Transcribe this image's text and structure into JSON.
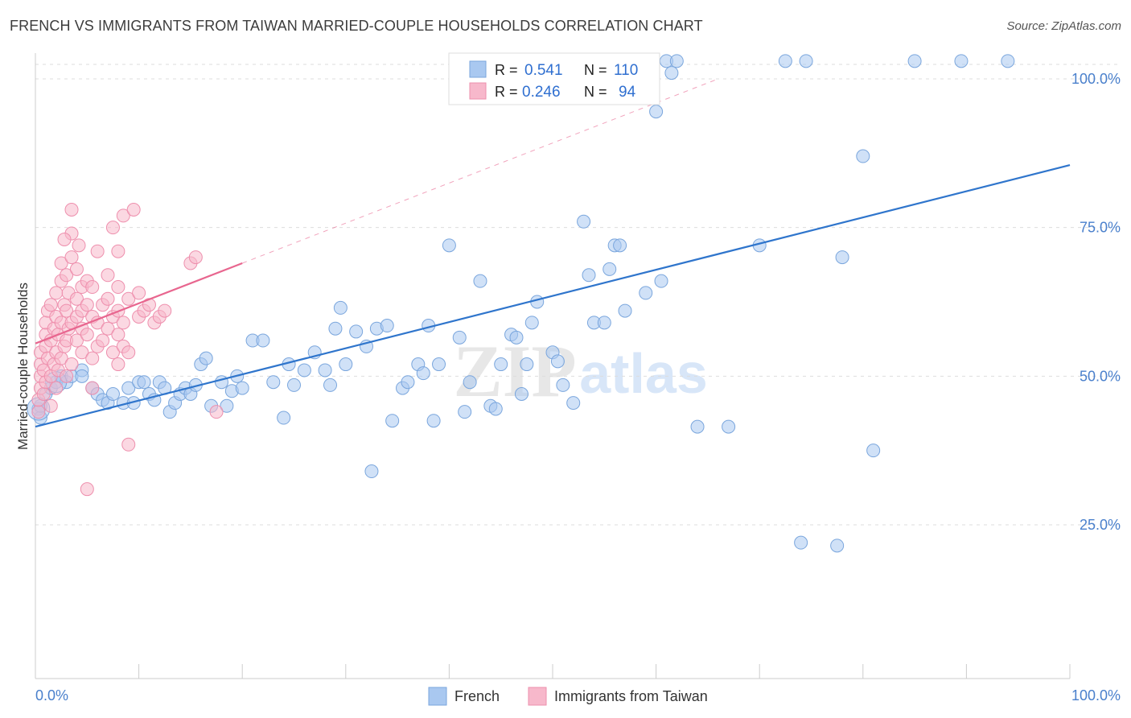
{
  "title": "FRENCH VS IMMIGRANTS FROM TAIWAN MARRIED-COUPLE HOUSEHOLDS CORRELATION CHART",
  "source": "Source: ZipAtlas.com",
  "watermark": {
    "zip": "ZIP",
    "atlas": "atlas"
  },
  "colors": {
    "french_fill": "#a9c8f0",
    "french_stroke": "#7aa6dd",
    "french_line": "#2f75cc",
    "taiwan_fill": "#f7b8cb",
    "taiwan_stroke": "#ee8fad",
    "taiwan_line": "#e8668f",
    "tick_text": "#4a80cc",
    "grid": "#dddddd"
  },
  "legend_box": {
    "rows": [
      {
        "r_label": "R =",
        "r_value": "0.541",
        "n_label": "N =",
        "n_value": "110"
      },
      {
        "r_label": "R =",
        "r_value": "0.246",
        "n_label": "N =",
        "n_value": "94"
      }
    ]
  },
  "chart_data": {
    "type": "scatter",
    "title": "FRENCH VS IMMIGRANTS FROM TAIWAN MARRIED-COUPLE HOUSEHOLDS CORRELATION CHART",
    "xlabel": "",
    "ylabel": "Married-couple Households",
    "xlim": [
      0,
      100
    ],
    "ylim": [
      0,
      105
    ],
    "x_tick_labels": [
      "0.0%",
      "100.0%"
    ],
    "y_ticks": [
      25,
      50,
      75,
      100
    ],
    "y_tick_labels": [
      "25.0%",
      "50.0%",
      "75.0%",
      "100.0%"
    ],
    "grid": true,
    "legend": [
      "French",
      "Immigrants from Taiwan"
    ],
    "series": [
      {
        "name": "French",
        "r": 0.541,
        "n": 110,
        "trend": {
          "x": [
            0,
            100
          ],
          "y": [
            41.5,
            85.5
          ],
          "dashed_extension": false
        },
        "points": [
          [
            0.3,
            44.5
          ],
          [
            0.5,
            43
          ],
          [
            0.5,
            45
          ],
          [
            1,
            47
          ],
          [
            1.5,
            48
          ],
          [
            2,
            49
          ],
          [
            2.5,
            50
          ],
          [
            3,
            49
          ],
          [
            3.5,
            50
          ],
          [
            4.5,
            51
          ],
          [
            4.5,
            50
          ],
          [
            5.5,
            48
          ],
          [
            6,
            47
          ],
          [
            6.5,
            46
          ],
          [
            7,
            45.5
          ],
          [
            7.5,
            47
          ],
          [
            8.5,
            45.5
          ],
          [
            9,
            48
          ],
          [
            9.5,
            45.5
          ],
          [
            10,
            49
          ],
          [
            10.5,
            49
          ],
          [
            11,
            47
          ],
          [
            11.5,
            46
          ],
          [
            12,
            49
          ],
          [
            12.5,
            48
          ],
          [
            13,
            44
          ],
          [
            13.5,
            45.5
          ],
          [
            14,
            47
          ],
          [
            14.5,
            48
          ],
          [
            15,
            47
          ],
          [
            15.5,
            48.5
          ],
          [
            16,
            52
          ],
          [
            16.5,
            53
          ],
          [
            17,
            45
          ],
          [
            18,
            49
          ],
          [
            18.5,
            45
          ],
          [
            19,
            47.5
          ],
          [
            19.5,
            50
          ],
          [
            20,
            48
          ],
          [
            21,
            56
          ],
          [
            22,
            56
          ],
          [
            23,
            49
          ],
          [
            24,
            43
          ],
          [
            24.5,
            52
          ],
          [
            25,
            48.5
          ],
          [
            26,
            51
          ],
          [
            27,
            54
          ],
          [
            28,
            51
          ],
          [
            28.5,
            48.5
          ],
          [
            29,
            58
          ],
          [
            29.5,
            61.5
          ],
          [
            30,
            52
          ],
          [
            31,
            57.5
          ],
          [
            32,
            55
          ],
          [
            33,
            58
          ],
          [
            34,
            58.5
          ],
          [
            34.5,
            42.5
          ],
          [
            35.5,
            48
          ],
          [
            36,
            49
          ],
          [
            37,
            52
          ],
          [
            37.5,
            50.5
          ],
          [
            38,
            58.5
          ],
          [
            38.5,
            42.5
          ],
          [
            39,
            52
          ],
          [
            40,
            72
          ],
          [
            41,
            56.5
          ],
          [
            41.5,
            44
          ],
          [
            42,
            49
          ],
          [
            43,
            66
          ],
          [
            44,
            45
          ],
          [
            44.5,
            44.5
          ],
          [
            45,
            52
          ],
          [
            46,
            57
          ],
          [
            46.5,
            56.5
          ],
          [
            47,
            47
          ],
          [
            47.5,
            52
          ],
          [
            48,
            59
          ],
          [
            48.5,
            62.5
          ],
          [
            50,
            54
          ],
          [
            50.5,
            52.5
          ],
          [
            51,
            48.5
          ],
          [
            52,
            45.5
          ],
          [
            53,
            76
          ],
          [
            53.5,
            67
          ],
          [
            54,
            59
          ],
          [
            55,
            59
          ],
          [
            55.5,
            68
          ],
          [
            56,
            72
          ],
          [
            56.5,
            72
          ],
          [
            57,
            61
          ],
          [
            59,
            64
          ],
          [
            60,
            94.5
          ],
          [
            60.5,
            66
          ],
          [
            61,
            103
          ],
          [
            61.5,
            101
          ],
          [
            62,
            103
          ],
          [
            64,
            41.5
          ],
          [
            67,
            41.5
          ],
          [
            70,
            72
          ],
          [
            72.5,
            103
          ],
          [
            74,
            22
          ],
          [
            74.5,
            103
          ],
          [
            77.5,
            21.5
          ],
          [
            78,
            70
          ],
          [
            80,
            87
          ],
          [
            81,
            37.5
          ],
          [
            85,
            103
          ],
          [
            89.5,
            103
          ],
          [
            94,
            103
          ],
          [
            32.5,
            34
          ]
        ]
      },
      {
        "name": "Immigrants from Taiwan",
        "r": 0.246,
        "n": 94,
        "trend": {
          "x": [
            0,
            20
          ],
          "y": [
            55.5,
            69
          ],
          "dashed_extension": true,
          "dashed_to": {
            "x": 66,
            "y": 100
          }
        },
        "points": [
          [
            0.3,
            44
          ],
          [
            0.3,
            46
          ],
          [
            0.5,
            48
          ],
          [
            0.5,
            50
          ],
          [
            0.5,
            52
          ],
          [
            0.5,
            54
          ],
          [
            0.8,
            47
          ],
          [
            0.8,
            51
          ],
          [
            1,
            49
          ],
          [
            1,
            55
          ],
          [
            1,
            57
          ],
          [
            1,
            59
          ],
          [
            1.2,
            53
          ],
          [
            1.2,
            61
          ],
          [
            1.5,
            45
          ],
          [
            1.5,
            50
          ],
          [
            1.5,
            56
          ],
          [
            1.5,
            62
          ],
          [
            1.8,
            52
          ],
          [
            1.8,
            58
          ],
          [
            2,
            48
          ],
          [
            2,
            54
          ],
          [
            2,
            60
          ],
          [
            2,
            64
          ],
          [
            2.2,
            51
          ],
          [
            2.2,
            57
          ],
          [
            2.5,
            53
          ],
          [
            2.5,
            59
          ],
          [
            2.5,
            66
          ],
          [
            2.5,
            69
          ],
          [
            2.8,
            55
          ],
          [
            2.8,
            62
          ],
          [
            3,
            50
          ],
          [
            3,
            56
          ],
          [
            3,
            61
          ],
          [
            3,
            67
          ],
          [
            3.2,
            58
          ],
          [
            3.2,
            64
          ],
          [
            3.5,
            52
          ],
          [
            3.5,
            59
          ],
          [
            3.5,
            70
          ],
          [
            3.5,
            74
          ],
          [
            4,
            56
          ],
          [
            4,
            60
          ],
          [
            4,
            63
          ],
          [
            4,
            68
          ],
          [
            4.2,
            72
          ],
          [
            4.5,
            54
          ],
          [
            4.5,
            58
          ],
          [
            4.5,
            61
          ],
          [
            4.5,
            65
          ],
          [
            5,
            57
          ],
          [
            5,
            62
          ],
          [
            5,
            66
          ],
          [
            5.5,
            48
          ],
          [
            5.5,
            53
          ],
          [
            5.5,
            60
          ],
          [
            5.5,
            65
          ],
          [
            6,
            55
          ],
          [
            6,
            59
          ],
          [
            6,
            71
          ],
          [
            6.5,
            56
          ],
          [
            6.5,
            62
          ],
          [
            7,
            58
          ],
          [
            7,
            63
          ],
          [
            7,
            67
          ],
          [
            7.5,
            54
          ],
          [
            7.5,
            60
          ],
          [
            7.5,
            75
          ],
          [
            8,
            52
          ],
          [
            8,
            57
          ],
          [
            8,
            61
          ],
          [
            8,
            65
          ],
          [
            8,
            71
          ],
          [
            8.5,
            55
          ],
          [
            8.5,
            59
          ],
          [
            8.5,
            77
          ],
          [
            9,
            54
          ],
          [
            9,
            63
          ],
          [
            9.5,
            78
          ],
          [
            10,
            60
          ],
          [
            10,
            64
          ],
          [
            10.5,
            61
          ],
          [
            11,
            62
          ],
          [
            11.5,
            59
          ],
          [
            12,
            60
          ],
          [
            12.5,
            61
          ],
          [
            15,
            69
          ],
          [
            15.5,
            70
          ],
          [
            17.5,
            44
          ],
          [
            5,
            31
          ],
          [
            9,
            38.5
          ],
          [
            3.5,
            78
          ],
          [
            2.8,
            73
          ]
        ]
      }
    ]
  }
}
